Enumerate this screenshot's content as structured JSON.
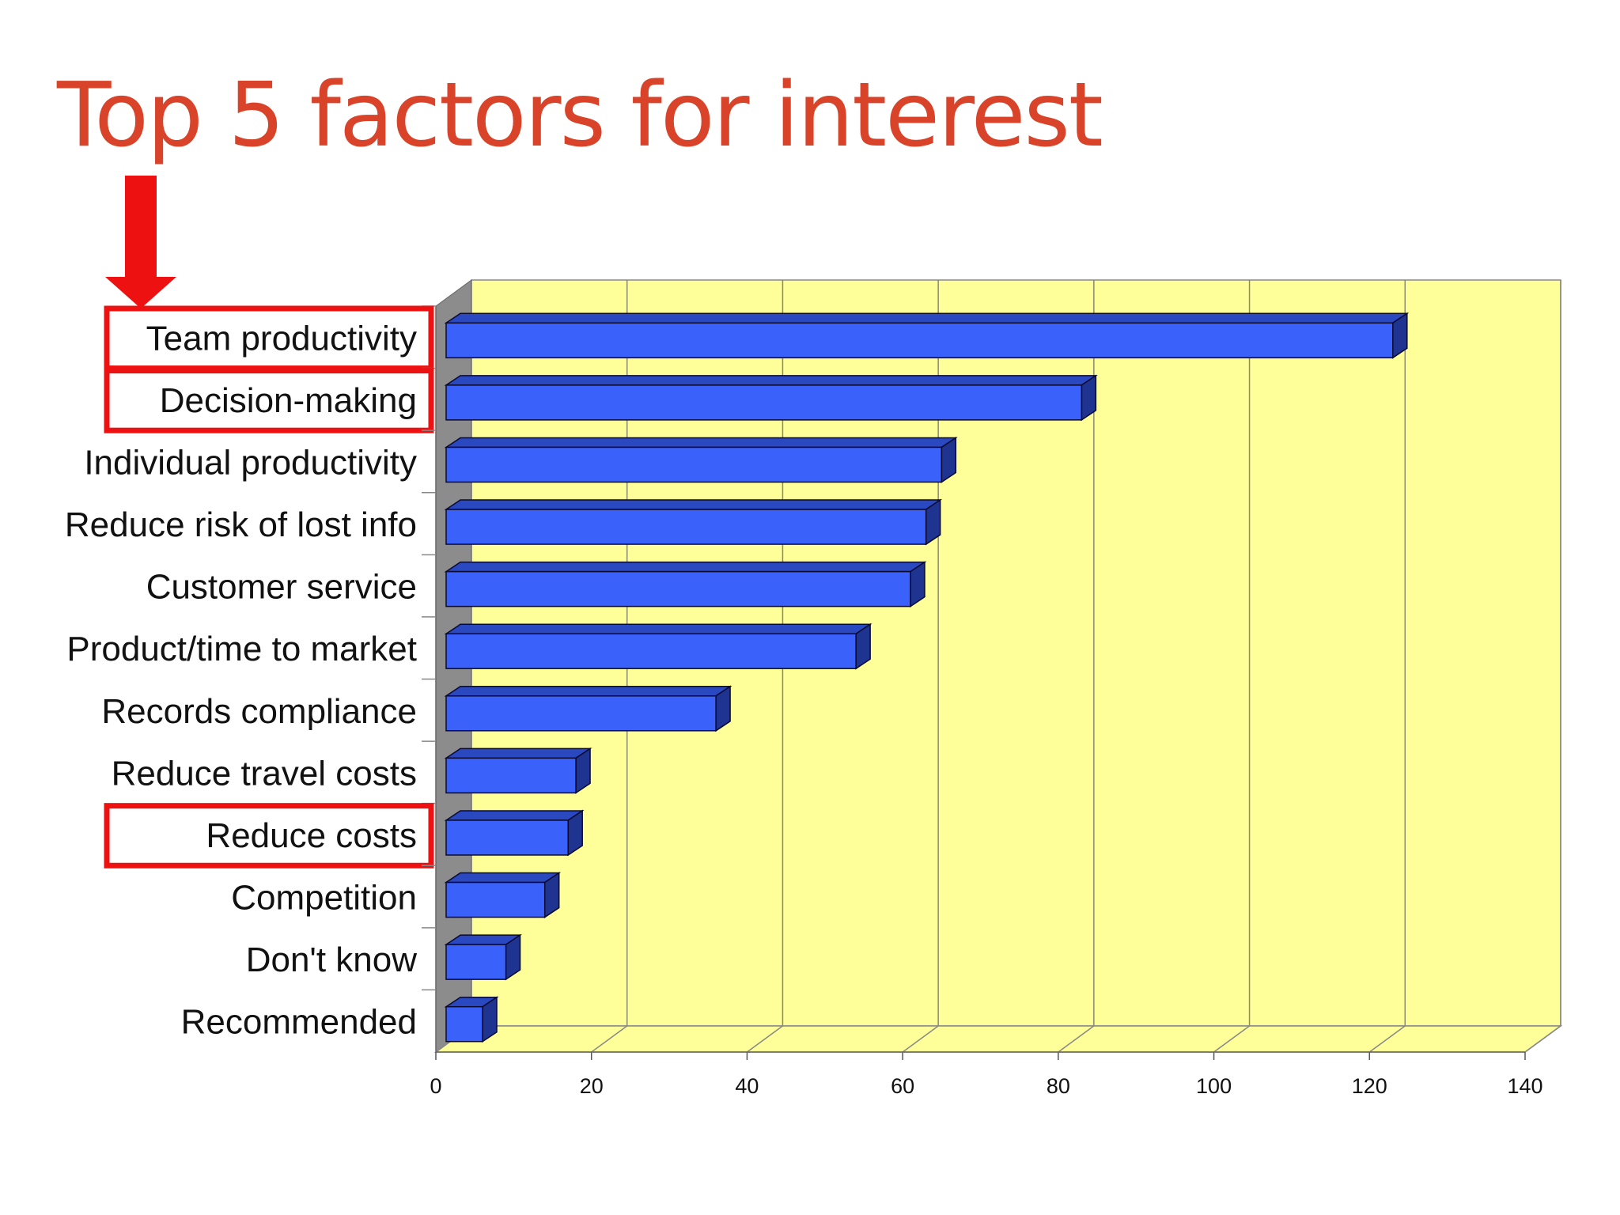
{
  "slide": {
    "title": "Top 5 factors for interest"
  },
  "chart_data": {
    "type": "bar",
    "orientation": "horizontal",
    "style": "3d",
    "categories": [
      "Team productivity",
      "Decision-making",
      "Individual productivity",
      "Reduce risk of lost info",
      "Customer service",
      "Product/time to market",
      "Records compliance",
      "Reduce travel costs",
      "Reduce costs",
      "Competition",
      "Don't know",
      "Recommended"
    ],
    "values": [
      123,
      83,
      65,
      63,
      61,
      54,
      36,
      18,
      17,
      14,
      9,
      6
    ],
    "xlim": [
      0,
      140
    ],
    "xticks": [
      "0",
      "20",
      "40",
      "60",
      "80",
      "100",
      "120",
      "140"
    ],
    "grid": true,
    "title": "",
    "xlabel": "",
    "ylabel": "",
    "highlighted_categories": [
      "Team productivity",
      "Decision-making",
      "Reduce costs"
    ]
  },
  "colors": {
    "title": "#d8432a",
    "bar_front": "#3a62fa",
    "bar_top": "#2a48c0",
    "bar_side": "#1f3490",
    "plot_back": "#ffff99",
    "plot_floor": "#ffff99",
    "plot_wall": "#8c8c8c",
    "highlight": "#ee1111",
    "arrow": "#ee1111"
  },
  "icons": {
    "pointer": "down-arrow-icon"
  }
}
